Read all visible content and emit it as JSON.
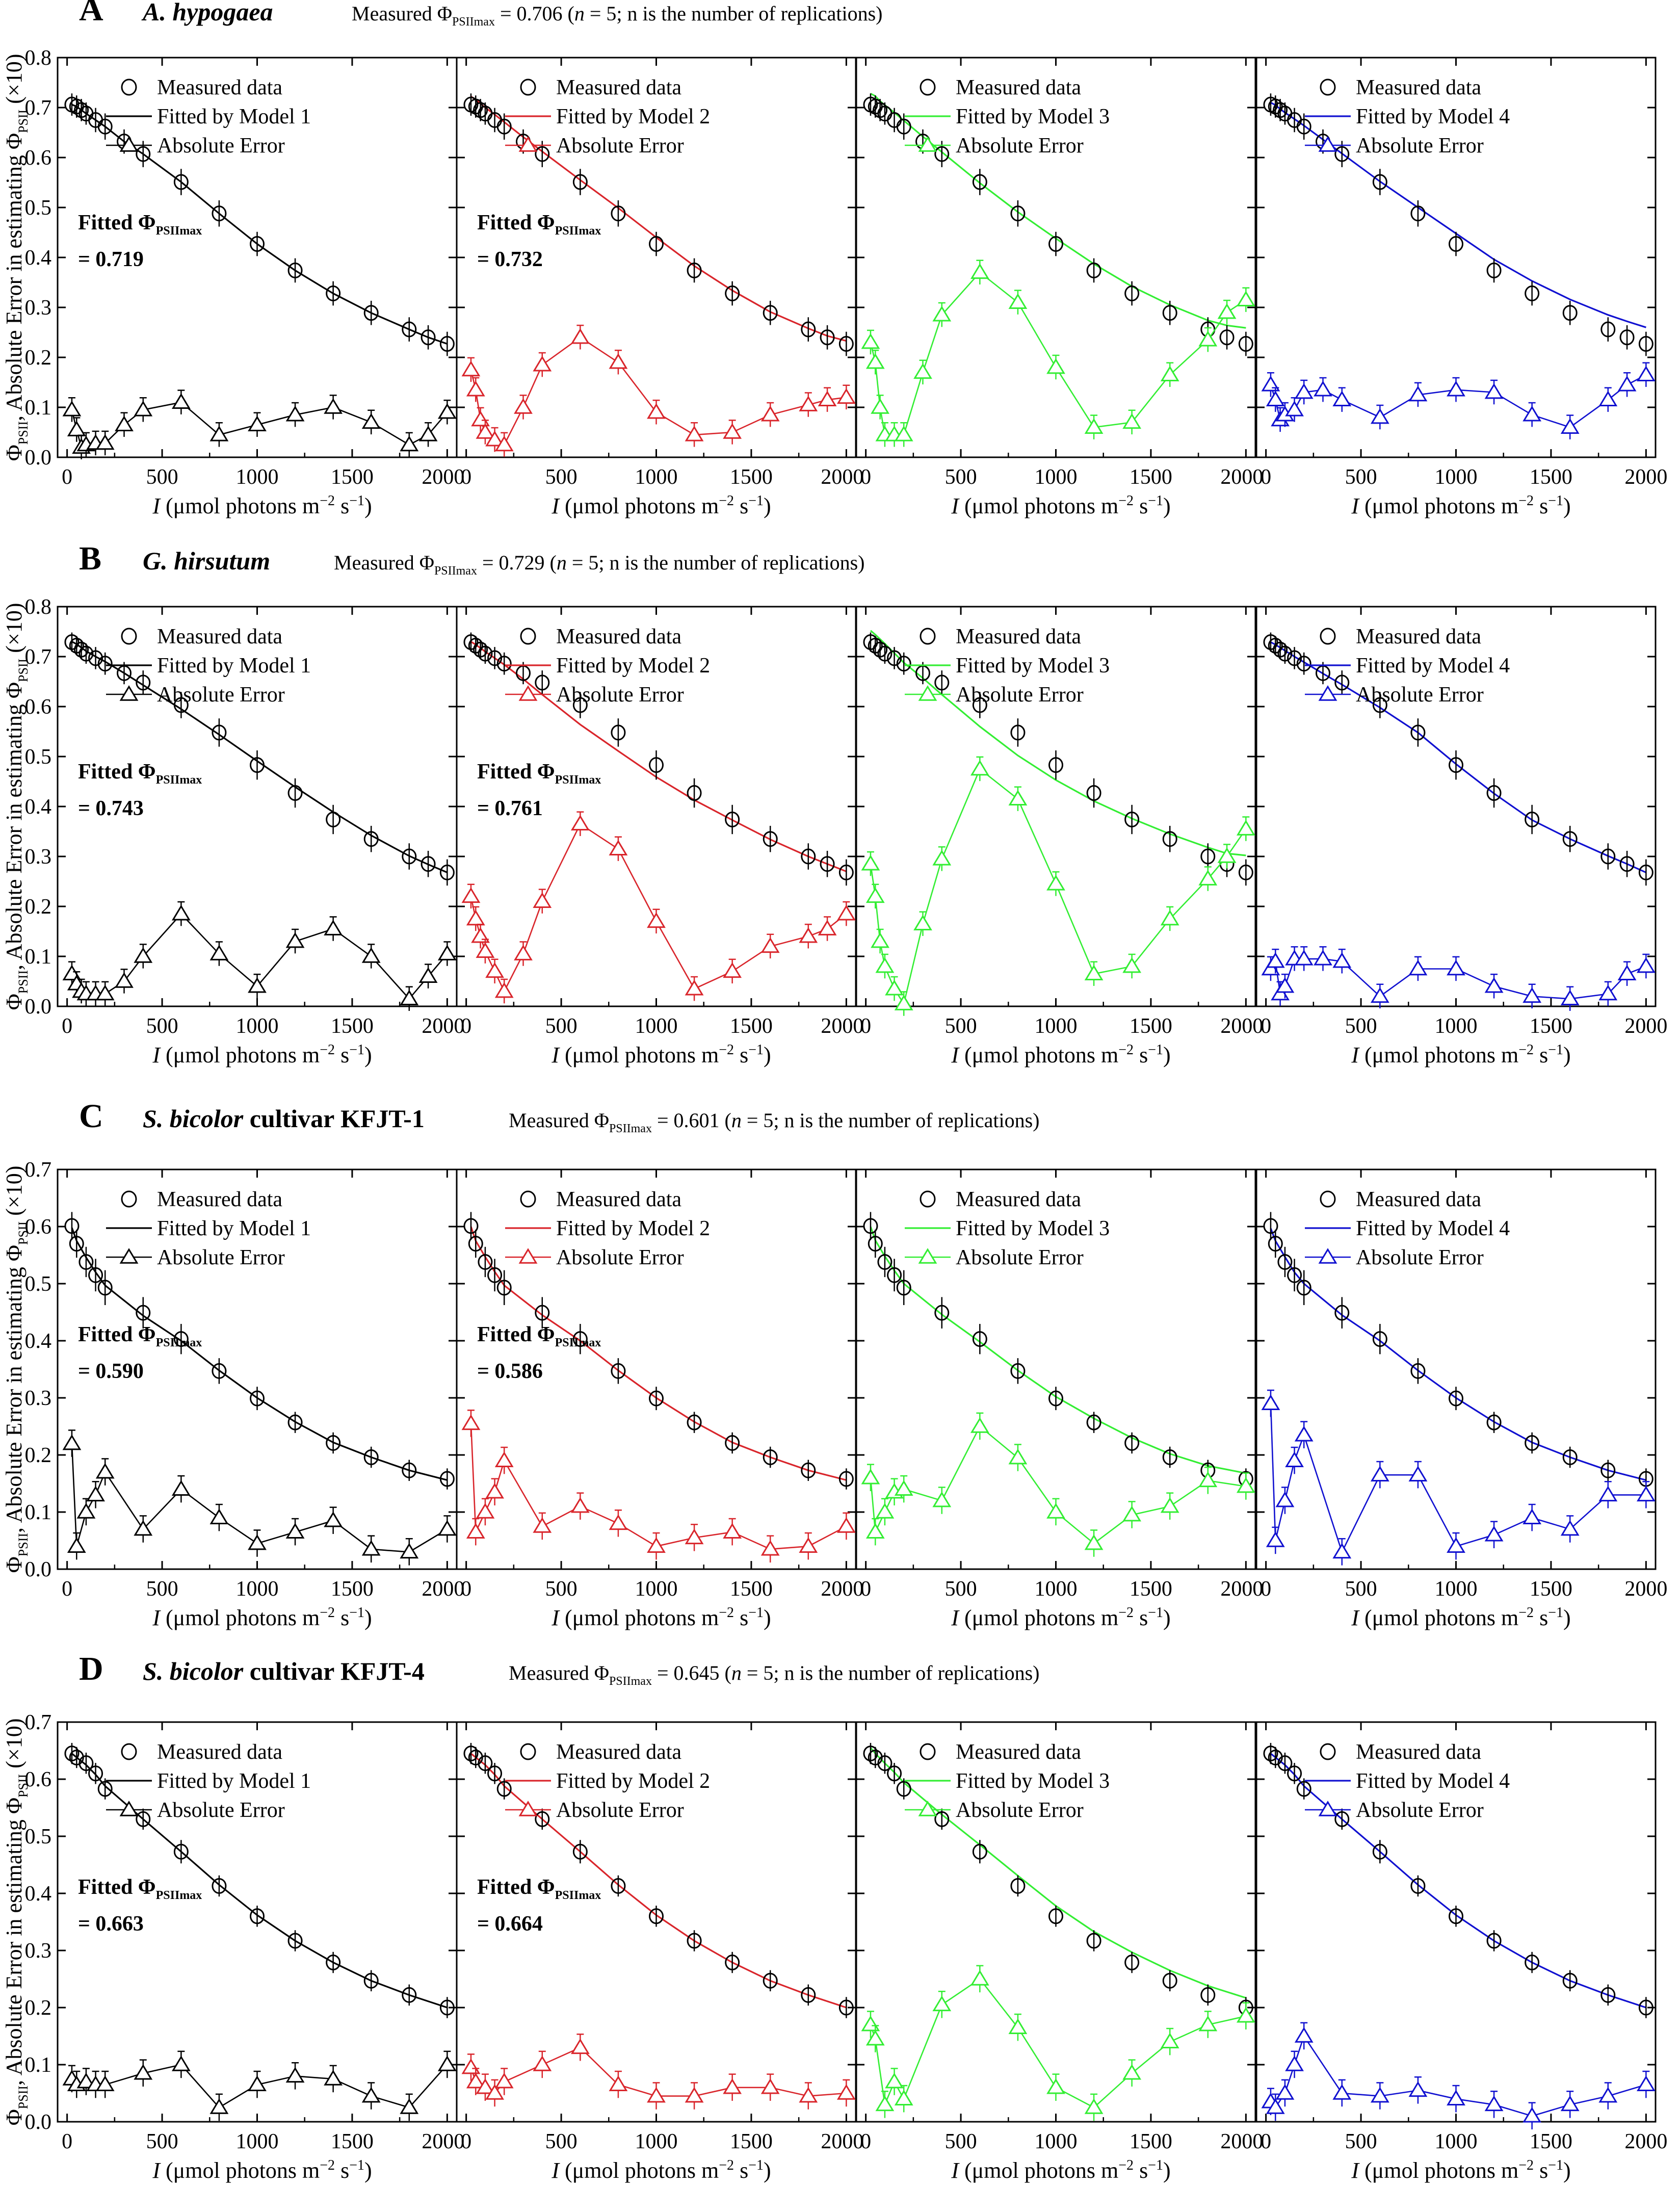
{
  "figure": {
    "x_axis_label": {
      "italic": "I",
      "text": " (μmol photons m",
      "sup1": "−2",
      "mid": " s",
      "sup2": "−1",
      "end": ")"
    },
    "y_axis_label": {
      "phi": "Φ",
      "sub1": "PSII",
      "text": ", Absolute Error in estimating Φ",
      "sub2": "PSII",
      "end": " (×10)"
    },
    "legend": {
      "measured": "Measured data",
      "fitted_prefix": "Fitted by Model ",
      "error": "Absolute Error"
    },
    "fitted_label": {
      "prefix": "Fitted Φ",
      "sub": "PSIImax"
    },
    "measured_label": {
      "prefix": "Measured Φ",
      "sub": "PSIImax",
      "n_italic": "n",
      "n_text": " = 5; n is the number of replications)"
    },
    "x_ticks": [
      "0",
      "500",
      "1000",
      "1500",
      "2000"
    ],
    "model_colors": [
      "#000000",
      "#d9252b",
      "#33ee33",
      "#1010d0"
    ]
  },
  "chart_data": [
    {
      "panel_letter": "A",
      "species": "A. hypogaea",
      "species_italic": "A. hypogaea",
      "species_rest": "",
      "measured_phi_max": "0.706",
      "type": "scatter+line",
      "xlim": [
        -50,
        2050
      ],
      "ylim": [
        0,
        0.8
      ],
      "y_ticks": [
        "0.0",
        "0.1",
        "0.2",
        "0.3",
        "0.4",
        "0.5",
        "0.6",
        "0.7",
        "0.8"
      ],
      "light_intensity": [
        25,
        50,
        75,
        100,
        150,
        200,
        300,
        400,
        600,
        800,
        1000,
        1200,
        1400,
        1600,
        1800,
        1900,
        2000
      ],
      "measured": [
        0.706,
        0.702,
        0.695,
        0.688,
        0.675,
        0.662,
        0.632,
        0.607,
        0.551,
        0.488,
        0.427,
        0.374,
        0.328,
        0.289,
        0.256,
        0.24,
        0.227
      ],
      "measured_err": [
        0.008,
        0.008,
        0.008,
        0.008,
        0.01,
        0.012,
        0.01,
        0.012,
        0.012,
        0.012,
        0.01,
        0.01,
        0.01,
        0.01,
        0.01,
        0.01,
        0.01
      ],
      "fitted_phi_max": [
        "0.719",
        "0.732",
        null,
        null
      ],
      "models": [
        {
          "fit": [
            0.706,
            0.702,
            0.695,
            0.688,
            0.675,
            0.662,
            0.632,
            0.607,
            0.551,
            0.488,
            0.427,
            0.374,
            0.328,
            0.289,
            0.256,
            0.24,
            0.227
          ],
          "error": [
            0.095,
            0.055,
            0.02,
            0.025,
            0.028,
            0.028,
            0.065,
            0.095,
            0.11,
            0.045,
            0.065,
            0.085,
            0.1,
            0.07,
            0.025,
            0.045,
            0.09
          ]
        },
        {
          "fit": [
            0.722,
            0.716,
            0.708,
            0.7,
            0.686,
            0.671,
            0.641,
            0.612,
            0.555,
            0.499,
            0.44,
            0.383,
            0.334,
            0.291,
            0.258,
            0.243,
            0.233
          ],
          "error": [
            0.175,
            0.135,
            0.075,
            0.05,
            0.035,
            0.025,
            0.1,
            0.185,
            0.24,
            0.19,
            0.09,
            0.045,
            0.05,
            0.085,
            0.105,
            0.115,
            0.12
          ]
        },
        {
          "fit": [
            0.728,
            0.723,
            0.713,
            0.705,
            0.69,
            0.674,
            0.642,
            0.611,
            0.549,
            0.491,
            0.438,
            0.387,
            0.342,
            0.305,
            0.274,
            0.264,
            0.259
          ],
          "error": [
            0.23,
            0.19,
            0.1,
            0.045,
            0.045,
            0.045,
            0.17,
            0.285,
            0.37,
            0.31,
            0.18,
            0.06,
            0.07,
            0.165,
            0.235,
            0.29,
            0.315
          ]
        },
        {
          "fit": [
            0.71,
            0.705,
            0.697,
            0.69,
            0.677,
            0.664,
            0.636,
            0.608,
            0.552,
            0.5,
            0.448,
            0.396,
            0.353,
            0.316,
            0.285,
            0.272,
            0.26
          ],
          "error": [
            0.145,
            0.115,
            0.075,
            0.085,
            0.095,
            0.13,
            0.135,
            0.115,
            0.08,
            0.125,
            0.135,
            0.13,
            0.085,
            0.06,
            0.115,
            0.145,
            0.165
          ]
        }
      ]
    },
    {
      "panel_letter": "B",
      "species": "G. hirsutum",
      "species_italic": "G. hirsutum",
      "species_rest": "",
      "measured_phi_max": "0.729",
      "type": "scatter+line",
      "xlim": [
        -50,
        2050
      ],
      "ylim": [
        0,
        0.8
      ],
      "y_ticks": [
        "0.0",
        "0.1",
        "0.2",
        "0.3",
        "0.4",
        "0.5",
        "0.6",
        "0.7",
        "0.8"
      ],
      "light_intensity": [
        25,
        50,
        75,
        100,
        150,
        200,
        300,
        400,
        600,
        800,
        1000,
        1200,
        1400,
        1600,
        1800,
        1900,
        2000
      ],
      "measured": [
        0.729,
        0.722,
        0.714,
        0.706,
        0.697,
        0.686,
        0.667,
        0.648,
        0.603,
        0.548,
        0.483,
        0.427,
        0.374,
        0.335,
        0.3,
        0.285,
        0.268
      ],
      "measured_err": [
        0.005,
        0.005,
        0.005,
        0.006,
        0.008,
        0.008,
        0.008,
        0.01,
        0.012,
        0.014,
        0.015,
        0.015,
        0.015,
        0.012,
        0.012,
        0.012,
        0.012
      ],
      "fitted_phi_max": [
        "0.743",
        "0.761",
        null,
        null
      ],
      "models": [
        {
          "fit": [
            0.73,
            0.725,
            0.718,
            0.711,
            0.7,
            0.69,
            0.667,
            0.643,
            0.595,
            0.544,
            0.491,
            0.439,
            0.389,
            0.342,
            0.301,
            0.284,
            0.268
          ],
          "error": [
            0.065,
            0.045,
            0.03,
            0.025,
            0.025,
            0.025,
            0.05,
            0.1,
            0.185,
            0.105,
            0.04,
            0.13,
            0.155,
            0.1,
            0.015,
            0.06,
            0.105
          ]
        },
        {
          "fit": [
            0.73,
            0.724,
            0.717,
            0.71,
            0.697,
            0.684,
            0.655,
            0.624,
            0.564,
            0.511,
            0.459,
            0.413,
            0.373,
            0.334,
            0.3,
            0.285,
            0.27
          ],
          "error": [
            0.22,
            0.175,
            0.14,
            0.11,
            0.07,
            0.03,
            0.105,
            0.21,
            0.365,
            0.315,
            0.17,
            0.035,
            0.07,
            0.12,
            0.14,
            0.155,
            0.185
          ]
        },
        {
          "fit": [
            0.752,
            0.744,
            0.735,
            0.726,
            0.707,
            0.688,
            0.657,
            0.624,
            0.56,
            0.502,
            0.453,
            0.411,
            0.376,
            0.345,
            0.318,
            0.306,
            0.302
          ],
          "error": [
            0.285,
            0.22,
            0.13,
            0.08,
            0.035,
            0.005,
            0.165,
            0.295,
            0.475,
            0.415,
            0.245,
            0.065,
            0.08,
            0.175,
            0.255,
            0.3,
            0.355
          ]
        },
        {
          "fit": [
            0.729,
            0.724,
            0.718,
            0.712,
            0.7,
            0.689,
            0.666,
            0.644,
            0.598,
            0.548,
            0.485,
            0.426,
            0.373,
            0.335,
            0.301,
            0.285,
            0.268
          ],
          "error": [
            0.075,
            0.09,
            0.025,
            0.04,
            0.095,
            0.095,
            0.095,
            0.09,
            0.02,
            0.075,
            0.075,
            0.04,
            0.02,
            0.015,
            0.025,
            0.065,
            0.08
          ]
        }
      ]
    },
    {
      "panel_letter": "C",
      "species": "S. bicolor cultivar KFJT-1",
      "species_italic": "S. bicolor",
      "species_rest": " cultivar KFJT-1",
      "measured_phi_max": "0.601",
      "type": "scatter+line",
      "xlim": [
        -50,
        2050
      ],
      "ylim": [
        0,
        0.7
      ],
      "y_ticks": [
        "0.0",
        "0.1",
        "0.2",
        "0.3",
        "0.4",
        "0.5",
        "0.6",
        "0.7"
      ],
      "light_intensity": [
        25,
        50,
        100,
        150,
        200,
        400,
        600,
        800,
        1000,
        1200,
        1400,
        1600,
        1800,
        2000
      ],
      "measured": [
        0.601,
        0.57,
        0.538,
        0.515,
        0.493,
        0.449,
        0.403,
        0.347,
        0.299,
        0.257,
        0.221,
        0.196,
        0.173,
        0.158
      ],
      "measured_err": [
        0.012,
        0.012,
        0.014,
        0.016,
        0.018,
        0.015,
        0.014,
        0.01,
        0.008,
        0.006,
        0.006,
        0.006,
        0.006,
        0.006
      ],
      "fitted_phi_max": [
        "0.590",
        "0.586",
        null,
        null
      ],
      "models": [
        {
          "fit": [
            0.598,
            0.575,
            0.546,
            0.52,
            0.497,
            0.444,
            0.4,
            0.348,
            0.3,
            0.258,
            0.222,
            0.196,
            0.173,
            0.156
          ],
          "error": [
            0.22,
            0.04,
            0.1,
            0.13,
            0.17,
            0.07,
            0.14,
            0.09,
            0.045,
            0.065,
            0.085,
            0.035,
            0.03,
            0.07
          ]
        },
        {
          "fit": [
            0.6,
            0.575,
            0.547,
            0.521,
            0.497,
            0.445,
            0.4,
            0.348,
            0.3,
            0.258,
            0.222,
            0.196,
            0.173,
            0.156
          ],
          "error": [
            0.255,
            0.065,
            0.1,
            0.135,
            0.19,
            0.075,
            0.11,
            0.08,
            0.04,
            0.055,
            0.065,
            0.035,
            0.04,
            0.075
          ]
        },
        {
          "fit": [
            0.6,
            0.576,
            0.548,
            0.523,
            0.5,
            0.446,
            0.398,
            0.348,
            0.302,
            0.264,
            0.23,
            0.202,
            0.181,
            0.168
          ],
          "error": [
            0.16,
            0.065,
            0.1,
            0.135,
            0.14,
            0.12,
            0.25,
            0.195,
            0.1,
            0.045,
            0.095,
            0.11,
            0.155,
            0.145
          ]
        },
        {
          "fit": [
            0.597,
            0.575,
            0.547,
            0.52,
            0.5,
            0.445,
            0.4,
            0.348,
            0.3,
            0.258,
            0.222,
            0.196,
            0.173,
            0.156
          ],
          "error": [
            0.29,
            0.05,
            0.12,
            0.19,
            0.235,
            0.03,
            0.165,
            0.165,
            0.04,
            0.06,
            0.09,
            0.07,
            0.13,
            0.13
          ]
        }
      ]
    },
    {
      "panel_letter": "D",
      "species": "S. bicolor cultivar KFJT-4",
      "species_italic": "S. bicolor",
      "species_rest": " cultivar KFJT-4",
      "measured_phi_max": "0.645",
      "type": "scatter+line",
      "xlim": [
        -50,
        2050
      ],
      "ylim": [
        0,
        0.7
      ],
      "y_ticks": [
        "0.0",
        "0.1",
        "0.2",
        "0.3",
        "0.4",
        "0.5",
        "0.6",
        "0.7"
      ],
      "light_intensity": [
        25,
        50,
        100,
        150,
        200,
        400,
        600,
        800,
        1000,
        1200,
        1400,
        1600,
        1800,
        2000
      ],
      "measured": [
        0.645,
        0.638,
        0.628,
        0.61,
        0.583,
        0.53,
        0.473,
        0.413,
        0.36,
        0.317,
        0.279,
        0.247,
        0.222,
        0.2
      ],
      "measured_err": [
        0.006,
        0.006,
        0.006,
        0.006,
        0.006,
        0.006,
        0.008,
        0.006,
        0.006,
        0.006,
        0.006,
        0.006,
        0.006,
        0.006
      ],
      "fitted_phi_max": [
        "0.663",
        "0.664",
        null,
        null
      ],
      "models": [
        {
          "fit": [
            0.645,
            0.638,
            0.625,
            0.608,
            0.588,
            0.53,
            0.473,
            0.415,
            0.362,
            0.317,
            0.279,
            0.247,
            0.222,
            0.2
          ],
          "error": [
            0.075,
            0.065,
            0.07,
            0.065,
            0.065,
            0.085,
            0.1,
            0.025,
            0.065,
            0.08,
            0.075,
            0.045,
            0.025,
            0.1
          ]
        },
        {
          "fit": [
            0.645,
            0.638,
            0.625,
            0.608,
            0.588,
            0.53,
            0.473,
            0.415,
            0.362,
            0.317,
            0.279,
            0.247,
            0.222,
            0.2
          ],
          "error": [
            0.095,
            0.07,
            0.06,
            0.05,
            0.07,
            0.1,
            0.13,
            0.065,
            0.045,
            0.045,
            0.06,
            0.06,
            0.045,
            0.05
          ]
        },
        {
          "fit": [
            0.655,
            0.645,
            0.628,
            0.612,
            0.594,
            0.538,
            0.485,
            0.431,
            0.378,
            0.333,
            0.297,
            0.265,
            0.238,
            0.217
          ],
          "error": [
            0.17,
            0.145,
            0.03,
            0.07,
            0.04,
            0.205,
            0.25,
            0.165,
            0.06,
            0.025,
            0.085,
            0.14,
            0.17,
            0.185
          ]
        },
        {
          "fit": [
            0.645,
            0.638,
            0.625,
            0.608,
            0.588,
            0.53,
            0.473,
            0.415,
            0.362,
            0.317,
            0.279,
            0.247,
            0.222,
            0.2
          ],
          "error": [
            0.035,
            0.025,
            0.05,
            0.1,
            0.15,
            0.05,
            0.045,
            0.055,
            0.04,
            0.03,
            0.01,
            0.03,
            0.045,
            0.065
          ]
        }
      ]
    }
  ]
}
